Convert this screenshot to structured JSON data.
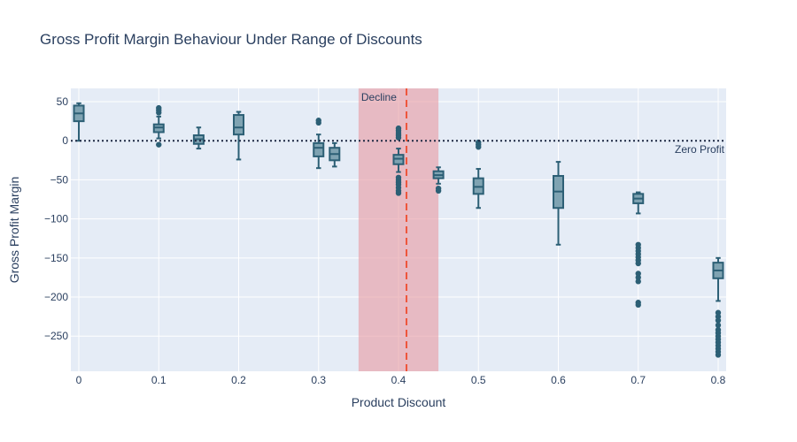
{
  "chart_data": {
    "type": "box",
    "title": "Gross Profit Margin Behaviour Under Range of Discounts",
    "xlabel": "Product Discount",
    "ylabel": "Gross Profit Margin",
    "xlim": [
      -0.01,
      0.81
    ],
    "ylim": [
      -295,
      67
    ],
    "x_ticks": [
      0,
      0.1,
      0.2,
      0.3,
      0.4,
      0.5,
      0.6,
      0.7,
      0.8
    ],
    "x_tick_labels": [
      "0",
      "0.1",
      "0.2",
      "0.3",
      "0.4",
      "0.5",
      "0.6",
      "0.7",
      "0.8"
    ],
    "y_ticks": [
      50,
      0,
      -50,
      -100,
      -150,
      -200,
      -250
    ],
    "y_tick_labels": [
      "50",
      "0",
      "−50",
      "−100",
      "−150",
      "−200",
      "−250"
    ],
    "grid": true,
    "colors": {
      "box_fill": "#7fa3b2",
      "box_line": "#2c5f75",
      "plot_bg": "#e5ecf6",
      "shade": "#e8a0a8",
      "decline_line": "#ef553b",
      "zero_line": "#1f2a44"
    },
    "shaded_region": {
      "x0": 0.35,
      "x1": 0.45,
      "label": "Decline"
    },
    "vertical_line": {
      "x": 0.41
    },
    "horizontal_line": {
      "y": 0,
      "label": "Zero Profit"
    },
    "boxes": [
      {
        "x": 0.0,
        "q1": 25,
        "median": 35,
        "q3": 45,
        "lower": 0,
        "upper": 48,
        "outliers": []
      },
      {
        "x": 0.1,
        "q1": 11,
        "median": 17,
        "q3": 21,
        "lower": 3,
        "upper": 31,
        "outliers": [
          36,
          39,
          42,
          -5
        ]
      },
      {
        "x": 0.15,
        "q1": -4,
        "median": 2,
        "q3": 7,
        "lower": -10,
        "upper": 17,
        "outliers": []
      },
      {
        "x": 0.2,
        "q1": 8,
        "median": 17,
        "q3": 33,
        "lower": -24,
        "upper": 37,
        "outliers": []
      },
      {
        "x": 0.3,
        "q1": -20,
        "median": -9,
        "q3": -3,
        "lower": -35,
        "upper": 8,
        "outliers": [
          23,
          26
        ]
      },
      {
        "x": 0.32,
        "q1": -25,
        "median": -17,
        "q3": -9,
        "lower": -33,
        "upper": -3,
        "outliers": []
      },
      {
        "x": 0.4,
        "q1": -30,
        "median": -23,
        "q3": -18,
        "lower": -40,
        "upper": -10,
        "outliers": [
          16,
          13,
          10,
          7,
          4,
          -47,
          -50,
          -53,
          -56,
          -60,
          -64,
          -67
        ]
      },
      {
        "x": 0.45,
        "q1": -48,
        "median": -44,
        "q3": -39,
        "lower": -55,
        "upper": -34,
        "outliers": [
          -61,
          -64
        ]
      },
      {
        "x": 0.5,
        "q1": -68,
        "median": -59,
        "q3": -48,
        "lower": -86,
        "upper": -36,
        "outliers": [
          -2,
          -5,
          -8
        ]
      },
      {
        "x": 0.6,
        "q1": -86,
        "median": -65,
        "q3": -45,
        "lower": -133,
        "upper": -27,
        "outliers": []
      },
      {
        "x": 0.7,
        "q1": -80,
        "median": -74,
        "q3": -68,
        "lower": -93,
        "upper": -66,
        "outliers": [
          -133,
          -137,
          -141,
          -145,
          -149,
          -153,
          -157,
          -170,
          -175,
          -180,
          -207,
          -210
        ]
      },
      {
        "x": 0.8,
        "q1": -176,
        "median": -166,
        "q3": -156,
        "lower": -205,
        "upper": -150,
        "outliers": [
          -220,
          -225,
          -230,
          -236,
          -242,
          -246,
          -250,
          -254,
          -258,
          -262,
          -266,
          -270,
          -274
        ]
      }
    ]
  }
}
